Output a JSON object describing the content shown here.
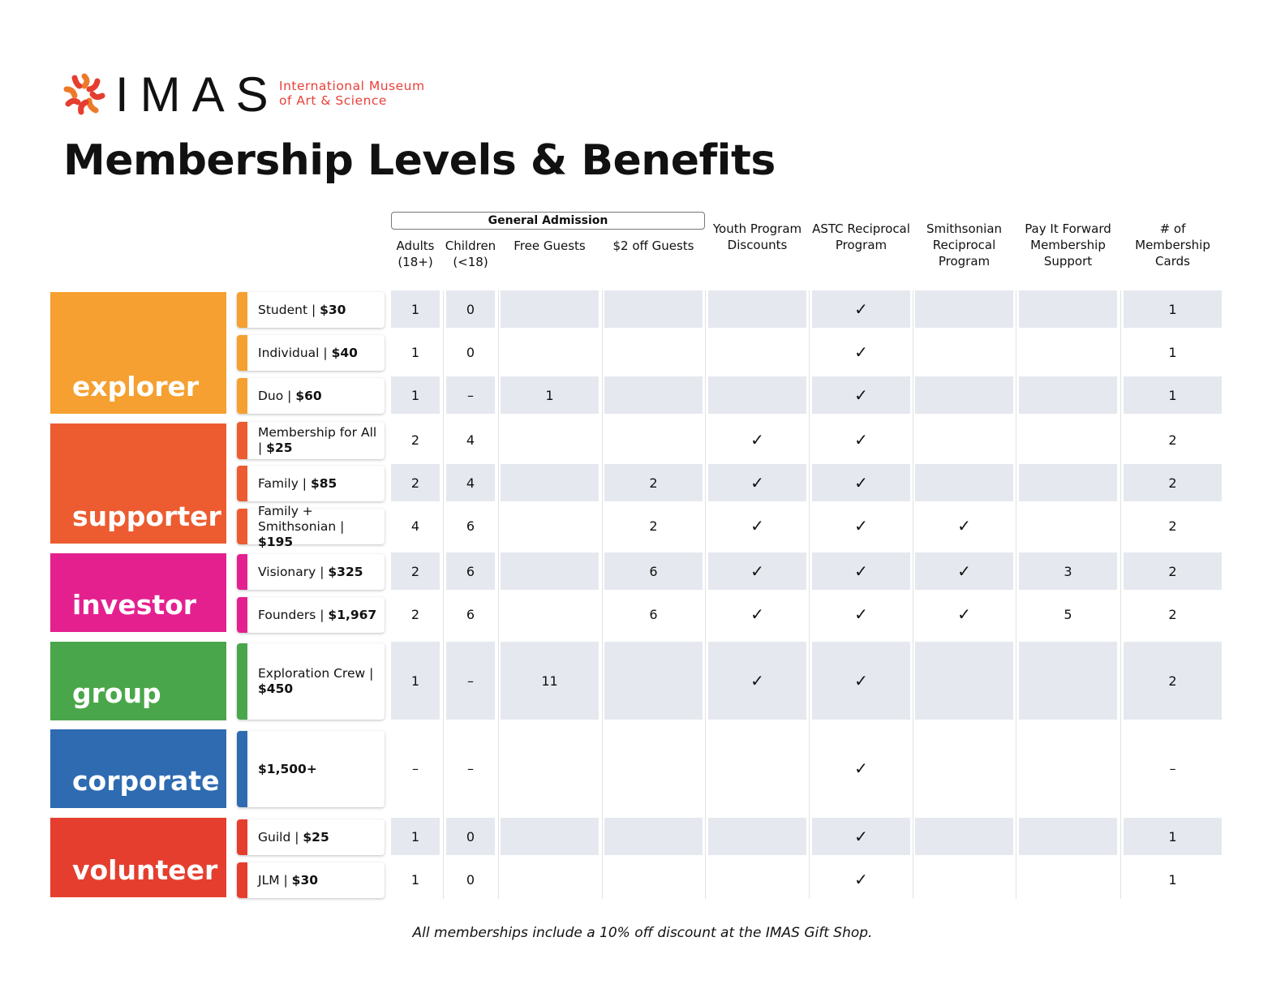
{
  "logo": {
    "word": "IMAS",
    "subtitle_line1": "International Museum",
    "subtitle_line2": "of Art & Science"
  },
  "title": "Membership Levels & Benefits",
  "headers": {
    "group": "General Admission",
    "columns": [
      "Adults (18+)",
      "Children (<18)",
      "Free Guests",
      "$2 off Guests",
      "Youth Program Discounts",
      "ASTC Reciprocal Program",
      "Smithsonian Reciprocal Program",
      "Pay It Forward Membership Support",
      "# of Membership Cards"
    ]
  },
  "colors": {
    "explorer": "#f5a030",
    "supporter": "#ec5c30",
    "investor": "#e4208f",
    "group": "#4aa64a",
    "corporate": "#2f6bb1",
    "volunteer": "#e53e2f",
    "shade": "#e5e8ef"
  },
  "groups": [
    {
      "name": "explorer",
      "levels": [
        {
          "name": "Student | ",
          "price": "$30",
          "values": [
            "1",
            "0",
            "",
            "",
            "",
            "✓",
            "",
            "",
            "1"
          ]
        },
        {
          "name": "Individual | ",
          "price": "$40",
          "values": [
            "1",
            "0",
            "",
            "",
            "",
            "✓",
            "",
            "",
            "1"
          ]
        },
        {
          "name": "Duo | ",
          "price": "$60",
          "values": [
            "1",
            "–",
            "1",
            "",
            "",
            "✓",
            "",
            "",
            "1"
          ]
        }
      ]
    },
    {
      "name": "supporter",
      "levels": [
        {
          "name": "Membership for All | ",
          "price": "$25",
          "values": [
            "2",
            "4",
            "",
            "",
            "✓",
            "✓",
            "",
            "",
            "2"
          ]
        },
        {
          "name": "Family | ",
          "price": "$85",
          "values": [
            "2",
            "4",
            "",
            "2",
            "✓",
            "✓",
            "",
            "",
            "2"
          ]
        },
        {
          "name": "Family + Smithsonian | ",
          "price": "$195",
          "values": [
            "4",
            "6",
            "",
            "2",
            "✓",
            "✓",
            "✓",
            "",
            "2"
          ]
        }
      ]
    },
    {
      "name": "investor",
      "levels": [
        {
          "name": "Visionary | ",
          "price": "$325",
          "values": [
            "2",
            "6",
            "",
            "6",
            "✓",
            "✓",
            "✓",
            "3",
            "2"
          ]
        },
        {
          "name": "Founders | ",
          "price": "$1,967",
          "values": [
            "2",
            "6",
            "",
            "6",
            "✓",
            "✓",
            "✓",
            "5",
            "2"
          ]
        }
      ]
    },
    {
      "name": "group",
      "levels": [
        {
          "name": "Exploration Crew | ",
          "price": "$450",
          "values": [
            "1",
            "–",
            "11",
            "",
            "✓",
            "✓",
            "",
            "",
            "2"
          ]
        }
      ]
    },
    {
      "name": "corporate",
      "levels": [
        {
          "name": "",
          "price": "$1,500+",
          "values": [
            "–",
            "–",
            "",
            "",
            "",
            "✓",
            "",
            "",
            "–"
          ]
        }
      ]
    },
    {
      "name": "volunteer",
      "levels": [
        {
          "name": "Guild | ",
          "price": "$25",
          "values": [
            "1",
            "0",
            "",
            "",
            "",
            "✓",
            "",
            "",
            "1"
          ]
        },
        {
          "name": "JLM | ",
          "price": "$30",
          "values": [
            "1",
            "0",
            "",
            "",
            "",
            "✓",
            "",
            "",
            "1"
          ]
        }
      ]
    }
  ],
  "footnote": "All memberships include a 10% off discount at the IMAS Gift Shop."
}
